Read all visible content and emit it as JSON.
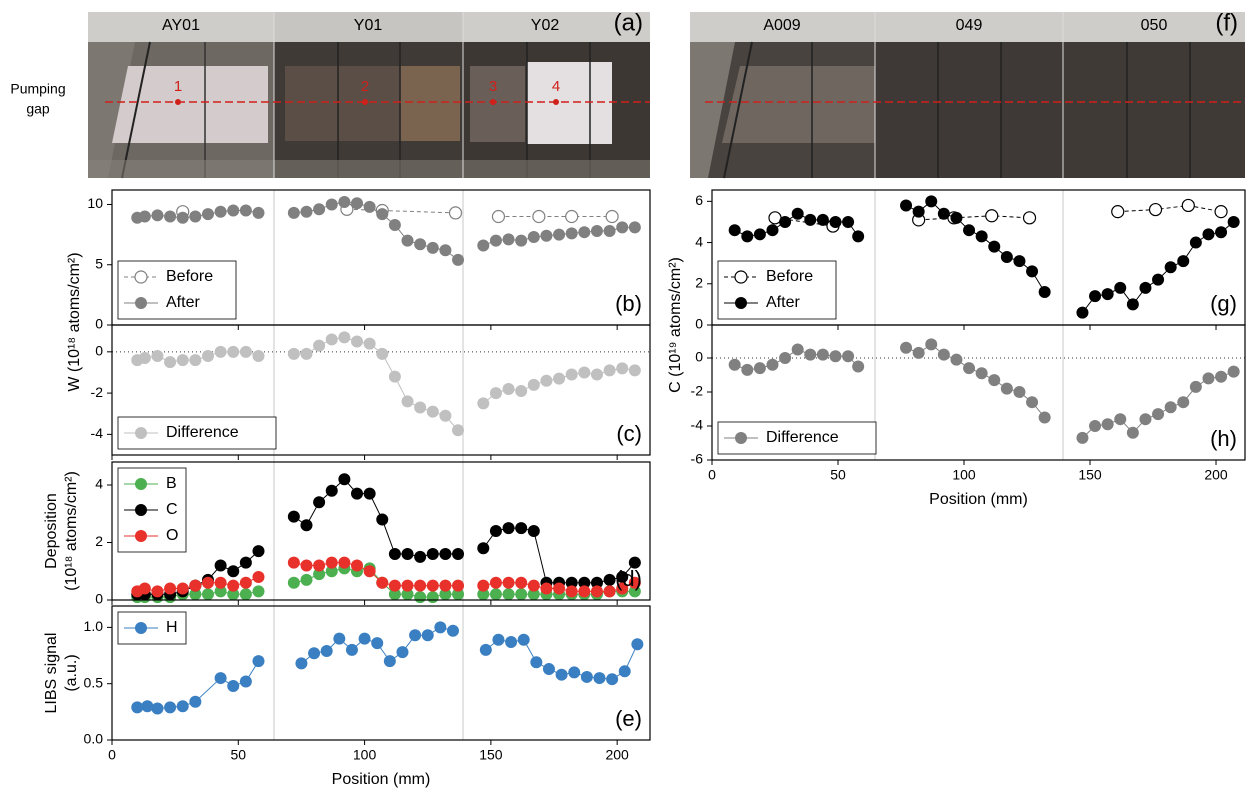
{
  "photos": [
    {
      "letter": "(a)",
      "plates": [
        "AY01",
        "Y01",
        "Y02"
      ],
      "markers": [
        "1",
        "2",
        "3",
        "4"
      ],
      "pumping_gap": [
        "Pumping",
        "gap"
      ]
    },
    {
      "letter": "(f)",
      "plates": [
        "A009",
        "049",
        "050"
      ]
    }
  ],
  "chart_data": [
    {
      "type": "scatter",
      "panel_label": "(b)",
      "ylabel": "W (10¹⁸ atoms/cm²)",
      "xlim": [
        0,
        213
      ],
      "xticks": [
        0,
        50,
        100,
        150,
        200
      ],
      "ylim": [
        0,
        11.2
      ],
      "yticks": [
        0,
        5,
        10
      ],
      "legend": "lower left",
      "series": [
        {
          "name": "Before",
          "color": "#808080",
          "marker": "open",
          "line": "dashed",
          "x": [
            28,
            null,
            93,
            107,
            136,
            null,
            153,
            169,
            182,
            198
          ],
          "values": [
            9.4,
            null,
            9.6,
            9.5,
            9.3,
            null,
            9.0,
            9.0,
            9.0,
            9.0
          ]
        },
        {
          "name": "After",
          "color": "#808080",
          "marker": "filled",
          "line": "solid",
          "x": [
            10,
            13,
            18,
            23,
            28,
            33,
            38,
            43,
            48,
            53,
            58,
            null,
            72,
            77,
            82,
            87,
            92,
            97,
            102,
            107,
            112,
            117,
            122,
            127,
            132,
            137,
            null,
            147,
            152,
            157,
            162,
            167,
            172,
            177,
            182,
            187,
            192,
            197,
            202,
            207
          ],
          "values": [
            8.9,
            9.0,
            9.1,
            9.0,
            8.9,
            9.0,
            9.2,
            9.4,
            9.5,
            9.5,
            9.3,
            null,
            9.3,
            9.4,
            9.6,
            10.0,
            10.2,
            10.1,
            9.8,
            9.2,
            8.3,
            7.0,
            6.7,
            6.4,
            6.2,
            5.4,
            null,
            6.6,
            7.0,
            7.1,
            7.0,
            7.3,
            7.4,
            7.5,
            7.6,
            7.7,
            7.8,
            7.8,
            8.1,
            8.1
          ]
        }
      ]
    },
    {
      "type": "scatter",
      "panel_label": "(c)",
      "xlim": [
        0,
        213
      ],
      "xticks": [
        0,
        50,
        100,
        150,
        200
      ],
      "ylim": [
        -5,
        1.3
      ],
      "yticks": [
        -4,
        -2,
        0
      ],
      "zero_line": true,
      "legend": "lower left",
      "series": [
        {
          "name": "Difference",
          "color": "#c0c0c0",
          "marker": "filled",
          "line": "solid",
          "x": [
            10,
            13,
            18,
            23,
            28,
            33,
            38,
            43,
            48,
            53,
            58,
            null,
            72,
            77,
            82,
            87,
            92,
            97,
            102,
            107,
            112,
            117,
            122,
            127,
            132,
            137,
            null,
            147,
            152,
            157,
            162,
            167,
            172,
            177,
            182,
            187,
            192,
            197,
            202,
            207
          ],
          "values": [
            -0.4,
            -0.3,
            -0.2,
            -0.5,
            -0.4,
            -0.4,
            -0.2,
            0.0,
            0.0,
            0.0,
            -0.2,
            null,
            -0.1,
            -0.1,
            0.3,
            0.6,
            0.7,
            0.5,
            0.4,
            -0.1,
            -1.2,
            -2.4,
            -2.7,
            -2.9,
            -3.1,
            -3.8,
            null,
            -2.5,
            -2.0,
            -1.8,
            -1.9,
            -1.6,
            -1.4,
            -1.3,
            -1.1,
            -1.0,
            -1.1,
            -0.9,
            -0.8,
            -0.9
          ]
        }
      ]
    },
    {
      "type": "scatter",
      "panel_label": "(d)",
      "ylabel": [
        "Deposition",
        "(10¹⁸ atoms/cm²)"
      ],
      "xlim": [
        0,
        213
      ],
      "xticks": [
        0,
        50,
        100,
        150,
        200
      ],
      "ylim": [
        0,
        4.8
      ],
      "yticks": [
        0,
        2,
        4
      ],
      "legend": "upper left",
      "series": [
        {
          "name": "B",
          "color": "#4caf50",
          "marker": "filled",
          "line": "solid",
          "x": [
            10,
            13,
            18,
            23,
            28,
            33,
            38,
            43,
            48,
            53,
            58,
            null,
            72,
            77,
            82,
            87,
            92,
            97,
            102,
            107,
            112,
            117,
            122,
            127,
            132,
            137,
            null,
            147,
            152,
            157,
            162,
            167,
            172,
            177,
            182,
            187,
            192,
            197,
            202,
            207
          ],
          "values": [
            0.1,
            0.1,
            0.1,
            0.1,
            0.2,
            0.2,
            0.2,
            0.3,
            0.2,
            0.2,
            0.3,
            null,
            0.6,
            0.7,
            0.9,
            1.0,
            1.1,
            1.0,
            1.1,
            0.6,
            0.2,
            0.2,
            0.1,
            0.1,
            0.2,
            0.2,
            null,
            0.2,
            0.2,
            0.2,
            0.2,
            0.2,
            0.2,
            0.2,
            0.2,
            0.2,
            0.2,
            0.3,
            0.3,
            0.3
          ]
        },
        {
          "name": "C",
          "color": "#000000",
          "marker": "filled",
          "line": "solid",
          "x": [
            10,
            13,
            18,
            23,
            28,
            33,
            38,
            43,
            48,
            53,
            58,
            null,
            72,
            77,
            82,
            87,
            92,
            97,
            102,
            107,
            112,
            117,
            122,
            127,
            132,
            137,
            null,
            147,
            152,
            157,
            162,
            167,
            172,
            177,
            182,
            187,
            192,
            197,
            202,
            207
          ],
          "values": [
            0.2,
            0.2,
            0.2,
            0.2,
            0.3,
            0.5,
            0.7,
            1.2,
            1.0,
            1.3,
            1.7,
            null,
            2.9,
            2.6,
            3.4,
            3.8,
            4.2,
            3.7,
            3.7,
            2.8,
            1.6,
            1.6,
            1.5,
            1.6,
            1.6,
            1.6,
            null,
            1.8,
            2.4,
            2.5,
            2.5,
            2.4,
            0.6,
            0.6,
            0.6,
            0.6,
            0.6,
            0.7,
            0.8,
            1.3
          ]
        },
        {
          "name": "O",
          "color": "#e8312a",
          "marker": "filled",
          "line": "solid",
          "x": [
            10,
            13,
            18,
            23,
            28,
            33,
            38,
            43,
            48,
            53,
            58,
            null,
            72,
            77,
            82,
            87,
            92,
            97,
            102,
            107,
            112,
            117,
            122,
            127,
            132,
            137,
            null,
            147,
            152,
            157,
            162,
            167,
            172,
            177,
            182,
            187,
            192,
            197,
            202,
            207
          ],
          "values": [
            0.3,
            0.4,
            0.3,
            0.4,
            0.4,
            0.5,
            0.6,
            0.6,
            0.5,
            0.6,
            0.8,
            null,
            1.3,
            1.2,
            1.2,
            1.3,
            1.3,
            1.2,
            1.0,
            0.6,
            0.5,
            0.5,
            0.5,
            0.5,
            0.5,
            0.5,
            null,
            0.5,
            0.6,
            0.6,
            0.6,
            0.5,
            0.4,
            0.4,
            0.3,
            0.3,
            0.3,
            0.3,
            0.4,
            0.6
          ]
        }
      ]
    },
    {
      "type": "scatter",
      "panel_label": "(e)",
      "ylabel": [
        "LIBS signal",
        "(a.u.)"
      ],
      "xlabel": "Position (mm)",
      "xlim": [
        0,
        213
      ],
      "xticks": [
        0,
        50,
        100,
        150,
        200
      ],
      "ylim": [
        0,
        1.19
      ],
      "yticks": [
        {
          "value": 0,
          "label": "0.0"
        },
        0.5,
        {
          "value": 1,
          "label": "1.0"
        }
      ],
      "legend": "upper left",
      "series": [
        {
          "name": "H",
          "color": "#3a7fc1",
          "marker": "filled",
          "line": "solid",
          "x": [
            10,
            14,
            18,
            23,
            28,
            33,
            43,
            48,
            53,
            58,
            null,
            75,
            80,
            85,
            90,
            95,
            100,
            105,
            110,
            115,
            120,
            125,
            130,
            135,
            null,
            148,
            153,
            158,
            163,
            168,
            173,
            178,
            183,
            188,
            193,
            198,
            203,
            208
          ],
          "values": [
            0.29,
            0.3,
            0.28,
            0.29,
            0.3,
            0.34,
            0.55,
            0.48,
            0.52,
            0.7,
            null,
            0.68,
            0.77,
            0.79,
            0.9,
            0.8,
            0.9,
            0.86,
            0.7,
            0.78,
            0.93,
            0.93,
            1.0,
            0.97,
            null,
            0.8,
            0.89,
            0.87,
            0.89,
            0.69,
            0.63,
            0.58,
            0.6,
            0.56,
            0.55,
            0.54,
            0.61,
            0.85
          ]
        }
      ]
    },
    {
      "type": "scatter",
      "panel_label": "(g)",
      "ylabel": "C (10¹⁹ atoms/cm²)",
      "xlim": [
        0,
        211.5
      ],
      "xticks": [
        0,
        50,
        100,
        150,
        200
      ],
      "ylim": [
        0,
        6.55
      ],
      "yticks": [
        0,
        2,
        4,
        6
      ],
      "legend": "lower left",
      "series": [
        {
          "name": "Before",
          "color": "#000000",
          "marker": "open",
          "line": "dashed",
          "x": [
            25,
            48,
            null,
            82,
            96,
            111,
            126,
            null,
            161,
            176,
            189,
            202
          ],
          "values": [
            5.2,
            4.8,
            null,
            5.1,
            5.2,
            5.3,
            5.2,
            null,
            5.5,
            5.6,
            5.8,
            5.5
          ]
        },
        {
          "name": "After",
          "color": "#000000",
          "marker": "filled",
          "line": "solid",
          "x": [
            9,
            14,
            19,
            24,
            29,
            34,
            39,
            44,
            49,
            54,
            58,
            null,
            77,
            82,
            87,
            92,
            97,
            102,
            107,
            112,
            117,
            122,
            127,
            132,
            null,
            147,
            152,
            157,
            162,
            167,
            172,
            177,
            182,
            187,
            192,
            197,
            202,
            207
          ],
          "values": [
            4.6,
            4.3,
            4.4,
            4.6,
            5.0,
            5.4,
            5.1,
            5.1,
            5.0,
            5.0,
            4.3,
            null,
            5.8,
            5.5,
            6.0,
            5.4,
            5.2,
            4.6,
            4.3,
            3.8,
            3.3,
            3.1,
            2.6,
            1.6,
            null,
            0.6,
            1.4,
            1.5,
            1.8,
            1.0,
            1.8,
            2.2,
            2.8,
            3.1,
            4.0,
            4.4,
            4.5,
            5.0
          ]
        }
      ]
    },
    {
      "type": "scatter",
      "panel_label": "(h)",
      "xlabel": "Position (mm)",
      "xlim": [
        0,
        211.5
      ],
      "xticks": [
        0,
        50,
        100,
        150,
        200
      ],
      "ylim": [
        -6,
        1.94
      ],
      "yticks": [
        -6,
        -4,
        -2,
        0
      ],
      "zero_line": true,
      "legend": "lower left",
      "series": [
        {
          "name": "Difference",
          "color": "#808080",
          "marker": "filled",
          "line": "solid",
          "x": [
            9,
            14,
            19,
            24,
            29,
            34,
            39,
            44,
            49,
            54,
            58,
            null,
            77,
            82,
            87,
            92,
            97,
            102,
            107,
            112,
            117,
            122,
            127,
            132,
            null,
            147,
            152,
            157,
            162,
            167,
            172,
            177,
            182,
            187,
            192,
            197,
            202,
            207
          ],
          "values": [
            -0.4,
            -0.7,
            -0.6,
            -0.4,
            0.0,
            0.5,
            0.2,
            0.2,
            0.1,
            0.1,
            -0.5,
            null,
            0.6,
            0.3,
            0.8,
            0.2,
            -0.1,
            -0.6,
            -0.9,
            -1.3,
            -1.8,
            -2.0,
            -2.6,
            -3.5,
            null,
            -4.7,
            -4.0,
            -3.9,
            -3.6,
            -4.4,
            -3.6,
            -3.3,
            -2.9,
            -2.6,
            -1.7,
            -1.2,
            -1.1,
            -0.8
          ]
        }
      ]
    }
  ]
}
